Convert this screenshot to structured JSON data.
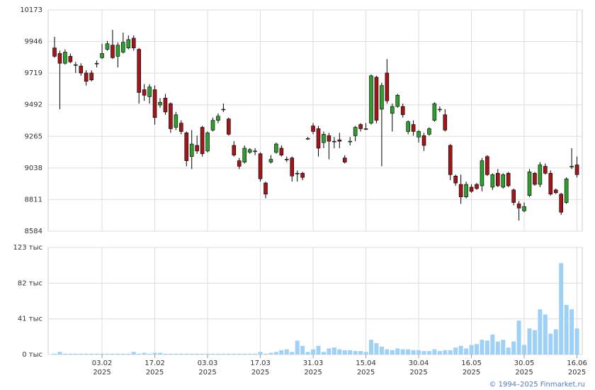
{
  "chart_data": {
    "type": "candlestick",
    "categories": [
      null,
      null,
      null,
      null,
      null,
      null,
      null,
      null,
      null,
      "03.02",
      null,
      null,
      null,
      null,
      null,
      null,
      null,
      null,
      null,
      "17.02",
      null,
      null,
      null,
      null,
      null,
      null,
      null,
      null,
      null,
      "03.03",
      null,
      null,
      null,
      null,
      null,
      null,
      null,
      null,
      null,
      "17.03",
      null,
      null,
      null,
      null,
      null,
      null,
      null,
      null,
      null,
      "31.03",
      null,
      null,
      null,
      null,
      null,
      null,
      null,
      null,
      null,
      "15.04",
      null,
      null,
      null,
      null,
      null,
      null,
      null,
      null,
      null,
      "30.04",
      null,
      null,
      null,
      null,
      null,
      null,
      null,
      null,
      null,
      "16.05",
      null,
      null,
      null,
      null,
      null,
      null,
      null,
      null,
      null,
      "30.05",
      null,
      null,
      null,
      null,
      null,
      null,
      null,
      null,
      null,
      "16.06"
    ],
    "year": "2025",
    "open": [
      9900,
      9860,
      9790,
      9840,
      9780,
      9770,
      9720,
      9720,
      9790,
      9830,
      9890,
      9920,
      9840,
      9870,
      9900,
      9970,
      9890,
      9600,
      9550,
      9600,
      9490,
      9540,
      9500,
      9330,
      9360,
      9290,
      9120,
      9200,
      9330,
      9160,
      9310,
      9380,
      9460,
      9390,
      9200,
      9090,
      9080,
      9150,
      9160,
      9140,
      8930,
      9080,
      9150,
      9180,
      9100,
      9110,
      9000,
      9000,
      9250,
      9340,
      9320,
      9220,
      9270,
      9230,
      9240,
      9110,
      9230,
      9270,
      9350,
      9320,
      9360,
      9690,
      9460,
      9720,
      9430,
      9480,
      9480,
      9300,
      9350,
      9260,
      9270,
      9280,
      9380,
      9460,
      9420,
      9200,
      8980,
      8920,
      8830,
      8900,
      8920,
      8910,
      9120,
      8900,
      9000,
      8900,
      9000,
      8880,
      8780,
      8730,
      8840,
      9000,
      8920,
      9050,
      9000,
      8880,
      8850,
      8790,
      9050,
      9060
    ],
    "high": [
      9980,
      9880,
      9890,
      9860,
      9800,
      9790,
      9740,
      9740,
      9810,
      9930,
      9950,
      10030,
      9940,
      10010,
      9990,
      9990,
      9900,
      9640,
      9640,
      9630,
      9540,
      9570,
      9510,
      9440,
      9380,
      9300,
      9310,
      9270,
      9340,
      9300,
      9400,
      9430,
      9500,
      9400,
      9230,
      9110,
      9200,
      9180,
      9180,
      9150,
      8940,
      9130,
      9220,
      9200,
      9120,
      9120,
      9020,
      9010,
      9260,
      9360,
      9340,
      9300,
      9290,
      9260,
      9290,
      9130,
      9260,
      9340,
      9360,
      9360,
      9710,
      9700,
      9650,
      9820,
      9500,
      9570,
      9500,
      9380,
      9380,
      9310,
      9290,
      9330,
      9510,
      9480,
      9460,
      9210,
      8990,
      8990,
      8940,
      8920,
      8930,
      9110,
      9130,
      9000,
      9030,
      9000,
      9010,
      8890,
      8800,
      8790,
      9030,
      9010,
      9080,
      9070,
      9020,
      8890,
      8860,
      8970,
      9180,
      9120
    ],
    "low": [
      9830,
      9460,
      9780,
      9790,
      9720,
      9700,
      9630,
      9660,
      9760,
      9820,
      9880,
      9820,
      9760,
      9860,
      9890,
      9880,
      9500,
      9520,
      9500,
      9350,
      9470,
      9420,
      9290,
      9310,
      9280,
      9050,
      9030,
      9140,
      9120,
      9150,
      9300,
      9360,
      9440,
      9270,
      9120,
      9030,
      9070,
      9140,
      9130,
      8940,
      8820,
      9070,
      9140,
      9120,
      9080,
      8940,
      8940,
      8950,
      9240,
      9280,
      9120,
      9180,
      9100,
      9180,
      9180,
      9070,
      9200,
      9230,
      9300,
      9310,
      9350,
      9360,
      9050,
      9500,
      9300,
      9470,
      9400,
      9280,
      9270,
      9220,
      9160,
      9270,
      9370,
      9440,
      9300,
      8950,
      8910,
      8780,
      8820,
      8860,
      8880,
      8870,
      8980,
      8880,
      8900,
      8890,
      8900,
      8770,
      8660,
      8720,
      8830,
      8910,
      8900,
      8990,
      8840,
      8850,
      8700,
      8780,
      9030,
      8970
    ],
    "close": [
      9840,
      9790,
      9870,
      9800,
      9780,
      9720,
      9660,
      9670,
      9790,
      9860,
      9930,
      9830,
      9920,
      9940,
      9960,
      9900,
      9580,
      9560,
      9620,
      9400,
      9510,
      9440,
      9320,
      9420,
      9300,
      9090,
      9210,
      9160,
      9140,
      9290,
      9380,
      9410,
      9460,
      9280,
      9130,
      9050,
      9180,
      9170,
      9160,
      8960,
      8850,
      9100,
      9210,
      9130,
      9100,
      8980,
      9000,
      8970,
      9250,
      9300,
      9180,
      9280,
      9230,
      9230,
      9230,
      9080,
      9230,
      9330,
      9320,
      9320,
      9700,
      9380,
      9630,
      9520,
      9480,
      9560,
      9420,
      9370,
      9300,
      9300,
      9200,
      9320,
      9500,
      9460,
      9310,
      8990,
      8930,
      8830,
      8920,
      8870,
      8890,
      9090,
      8990,
      8990,
      8910,
      8990,
      8910,
      8790,
      8750,
      8760,
      9010,
      8920,
      9060,
      9000,
      8850,
      8860,
      8720,
      8960,
      9050,
      8990
    ],
    "volume": [
      1,
      3,
      1,
      1,
      1,
      1,
      1,
      1,
      1,
      1,
      1,
      1,
      1,
      1,
      1,
      3,
      1,
      2,
      1,
      2,
      2,
      1,
      1,
      1,
      1,
      1,
      1,
      1,
      1,
      1,
      1,
      1,
      1,
      1,
      1,
      1,
      1,
      1,
      1,
      3,
      1,
      2,
      3,
      5,
      6,
      3,
      16,
      10,
      3,
      6,
      10,
      3,
      7,
      8,
      6,
      5,
      5,
      4,
      4,
      3,
      17,
      13,
      9,
      6,
      5,
      7,
      6,
      6,
      5,
      5,
      4,
      4,
      6,
      4,
      5,
      5,
      8,
      10,
      7,
      11,
      12,
      17,
      16,
      23,
      15,
      17,
      8,
      15,
      39,
      11,
      30,
      28,
      52,
      46,
      24,
      29,
      105,
      57,
      52,
      30
    ],
    "up_color": "#2e9e2e",
    "down_color": "#a0161a",
    "volume_color": "#9fd0f5",
    "ylim": [
      8584,
      10173
    ],
    "yticks": [
      8584,
      8811,
      9038,
      9265,
      9492,
      9719,
      9946,
      10173
    ],
    "volume_ylim": [
      0,
      123
    ],
    "volume_yticks": [
      {
        "value": 0,
        "label": "0 тыс"
      },
      {
        "value": 41,
        "label": "41 тыс"
      },
      {
        "value": 82,
        "label": "82 тыс"
      },
      {
        "value": 123,
        "label": "123 тыс"
      }
    ],
    "grid": true,
    "source": "© 1994–2025 Finmarket.ru"
  }
}
